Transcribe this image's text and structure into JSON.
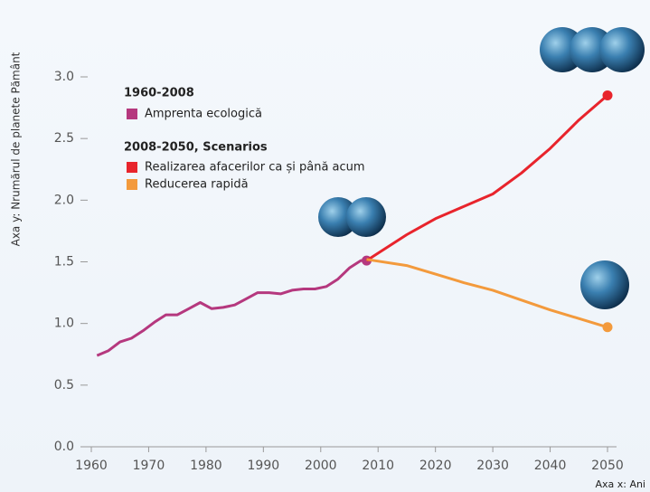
{
  "chart_data": {
    "type": "line",
    "y_label": "Axa y: Nrumărul de planete Pământ",
    "x_label": "Axa x: Ani",
    "legend_groups": [
      "1960-2008",
      "2008-2050, Scenarios"
    ],
    "series": [
      {
        "name": "Amprenta ecologică",
        "color": "#b5387e",
        "x": [
          1961,
          1963,
          1965,
          1967,
          1969,
          1971,
          1973,
          1975,
          1977,
          1979,
          1981,
          1983,
          1985,
          1987,
          1989,
          1991,
          1993,
          1995,
          1997,
          1999,
          2001,
          2003,
          2005,
          2007,
          2008
        ],
        "values": [
          0.74,
          0.78,
          0.85,
          0.88,
          0.94,
          1.01,
          1.07,
          1.07,
          1.12,
          1.17,
          1.12,
          1.13,
          1.15,
          1.2,
          1.25,
          1.25,
          1.24,
          1.27,
          1.28,
          1.28,
          1.3,
          1.36,
          1.45,
          1.51,
          1.51
        ]
      },
      {
        "name": "Realizarea afacerilor ca și până acum",
        "color": "#e8242c",
        "x": [
          2008,
          2015,
          2020,
          2025,
          2030,
          2035,
          2040,
          2045,
          2050
        ],
        "values": [
          1.51,
          1.72,
          1.85,
          1.95,
          2.05,
          2.22,
          2.42,
          2.65,
          2.85
        ]
      },
      {
        "name": "Reducerea rapidă",
        "color": "#f39a3c",
        "x": [
          2008,
          2015,
          2020,
          2025,
          2030,
          2035,
          2040,
          2045,
          2050
        ],
        "values": [
          1.52,
          1.47,
          1.4,
          1.33,
          1.27,
          1.19,
          1.11,
          1.04,
          0.97
        ]
      }
    ],
    "xlim": [
      1960,
      2050
    ],
    "xticks": [
      1960,
      1970,
      1980,
      1990,
      2000,
      2010,
      2020,
      2030,
      2040,
      2050
    ],
    "ylim": [
      0,
      3
    ],
    "yticks": [
      {
        "value": 0,
        "label": "0.0"
      },
      0.5,
      {
        "value": 1,
        "label": "1.0"
      },
      1.5,
      {
        "value": 2,
        "label": "2.0"
      },
      2.5,
      {
        "value": 3,
        "label": "3.0"
      }
    ]
  }
}
